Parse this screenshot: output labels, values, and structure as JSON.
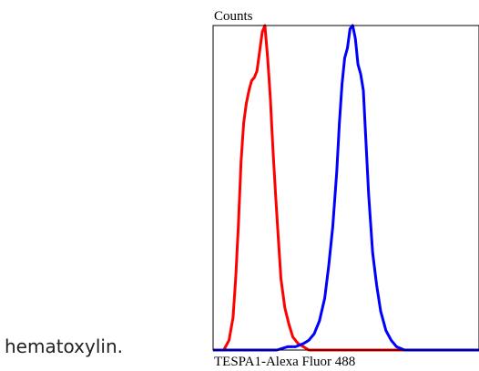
{
  "caption": {
    "text": "hematoxylin."
  },
  "chart_data": {
    "type": "line",
    "title": "",
    "ylabel": "Counts",
    "xlabel": "TESPA1-Alexa Fluor 488",
    "xlim": [
      0,
      100
    ],
    "ylim": [
      0,
      100
    ],
    "grid": false,
    "legend": "none",
    "series": [
      {
        "color": "#ff0000",
        "x": [
          0,
          4,
          6,
          7.5,
          8.5,
          9.5,
          10.5,
          11.5,
          12.5,
          13.5,
          14.5,
          15.5,
          16.5,
          17.5,
          18.5,
          19.5,
          20.5,
          21.5,
          22.5,
          23.5,
          24.5,
          25.5,
          27,
          28.5,
          30,
          32,
          34,
          36,
          40,
          100
        ],
        "y": [
          0,
          0,
          3,
          10,
          22,
          38,
          58,
          70,
          76,
          80,
          83,
          84,
          86,
          92,
          98,
          100,
          90,
          78,
          62,
          48,
          35,
          22,
          13,
          8,
          4,
          2,
          1,
          0,
          0,
          0
        ]
      },
      {
        "color": "#0000ff",
        "x": [
          0,
          24,
          28,
          31,
          34,
          36,
          38,
          40,
          42,
          43.5,
          45,
          46.5,
          47.5,
          48.5,
          49.5,
          50.5,
          51.5,
          52.5,
          53.5,
          54.5,
          55.5,
          56.5,
          57.5,
          58.5,
          60,
          61.5,
          63,
          65,
          67,
          69,
          72,
          76,
          80,
          100
        ],
        "y": [
          0,
          0,
          1,
          1,
          2,
          3,
          5,
          9,
          16,
          26,
          38,
          55,
          70,
          82,
          90,
          93,
          99,
          100,
          96,
          88,
          85,
          80,
          64,
          48,
          30,
          20,
          12,
          6,
          3,
          1,
          0,
          0,
          0,
          0
        ]
      }
    ]
  }
}
